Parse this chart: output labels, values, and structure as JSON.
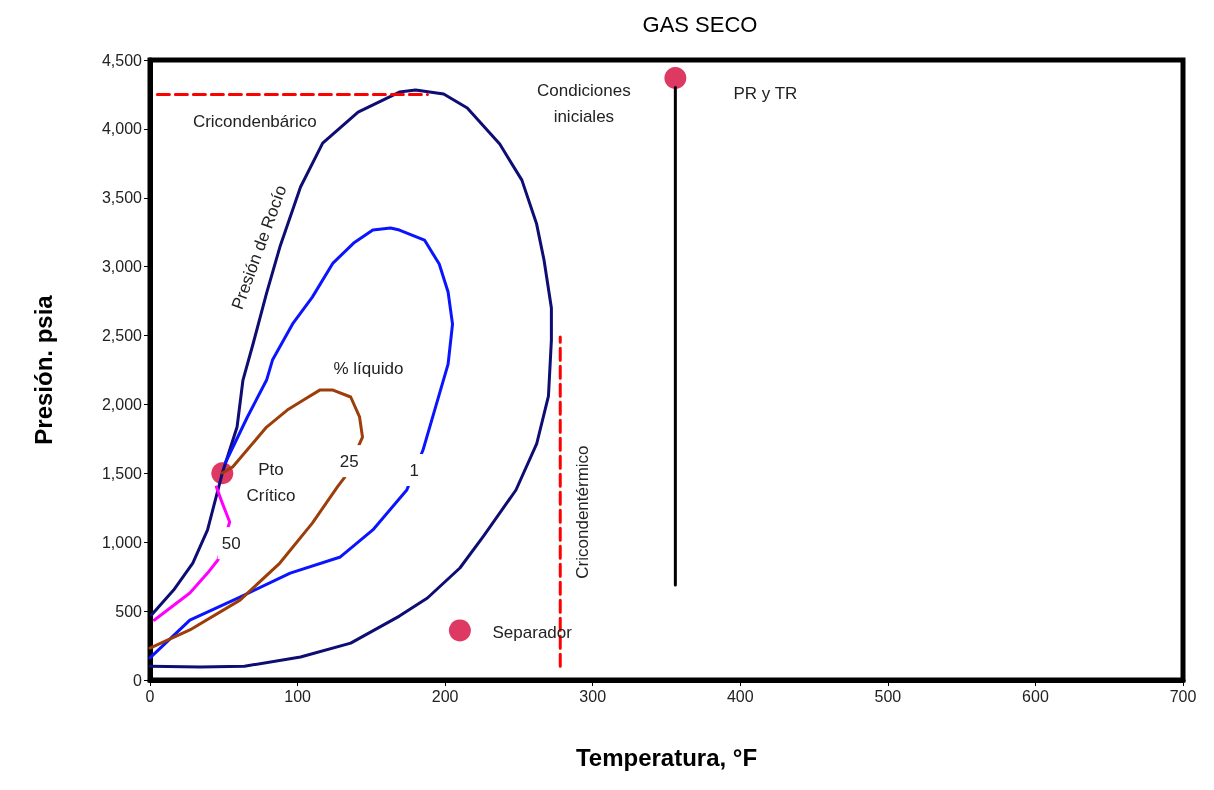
{
  "chart_data": {
    "type": "line",
    "title": "GAS SECO",
    "xlabel": "Temperatura, °F",
    "ylabel": "Presión. psia",
    "xlim": [
      0,
      700
    ],
    "xticks": [
      0,
      100,
      200,
      300,
      400,
      500,
      600,
      700
    ],
    "ylim": [
      0,
      4500
    ],
    "yticks": [
      0,
      500,
      {
        "value": 1000,
        "label": "1,000"
      },
      {
        "value": 1500,
        "label": "1,500"
      },
      {
        "value": 2000,
        "label": "2,000"
      },
      {
        "value": 2500,
        "label": "2,500"
      },
      {
        "value": 3000,
        "label": "3,000"
      },
      {
        "value": 3500,
        "label": "3,500"
      },
      {
        "value": 4000,
        "label": "4,000"
      },
      {
        "value": 4500,
        "label": "4,500"
      }
    ],
    "grid": false,
    "series": [
      {
        "color": "#0d0d73",
        "marker": "none",
        "line_style": "solid",
        "x": [
          0,
          34,
          64,
          102,
          136,
          169,
          188,
          210,
          226,
          248,
          262,
          270,
          272,
          272,
          267,
          262,
          252,
          237,
          215,
          199,
          180,
          169,
          141,
          117,
          102,
          88,
          79,
          70,
          63,
          59,
          49,
          39,
          29,
          16,
          1
        ],
        "values": [
          100,
          94,
          100,
          167,
          268,
          464,
          595,
          813,
          1045,
          1379,
          1713,
          2061,
          2467,
          2700,
          3048,
          3309,
          3628,
          3890,
          4151,
          4253,
          4282,
          4267,
          4122,
          3897,
          3578,
          3142,
          2808,
          2446,
          2177,
          1836,
          1502,
          1089,
          849,
          653,
          472
        ]
      },
      {
        "color": "#0a14ff",
        "marker": "none",
        "line_style": "solid",
        "x": [
          0,
          27,
          61,
          95,
          129,
          151,
          174,
          185,
          202,
          205,
          202,
          196,
          186,
          169,
          163,
          151,
          138,
          124,
          110,
          97,
          83,
          79,
          66,
          51
        ],
        "values": [
          160,
          435,
          602,
          776,
          893,
          1089,
          1379,
          1669,
          2293,
          2583,
          2816,
          3019,
          3193,
          3266,
          3280,
          3266,
          3171,
          3026,
          2779,
          2591,
          2322,
          2177,
          1909,
          1575
        ]
      },
      {
        "color": "#9c3d0a",
        "marker": "none",
        "line_style": "solid",
        "x": [
          0,
          27,
          61,
          88,
          110,
          127,
          132,
          144,
          142,
          136,
          124,
          115,
          104,
          93,
          79,
          56,
          49
        ],
        "values": [
          232,
          363,
          580,
          849,
          1139,
          1401,
          1473,
          1763,
          1909,
          2054,
          2104,
          2104,
          2032,
          1959,
          1836,
          1546,
          1502
        ]
      },
      {
        "color": "#ff00ff",
        "marker": "none",
        "line_style": "solid",
        "x": [
          3,
          27,
          39,
          46,
          54,
          49,
          45
        ],
        "values": [
          435,
          631,
          776,
          871,
          1147,
          1284,
          1401
        ]
      },
      {
        "color": "#000000",
        "marker": "none",
        "line_style": "solid",
        "x": [
          356,
          356
        ],
        "values": [
          690,
          4300
        ]
      },
      {
        "color": "#ff0000",
        "marker": "none",
        "line_style": "dashed",
        "x": [
          5,
          188
        ],
        "values": [
          4250,
          4250
        ]
      },
      {
        "color": "#ff0000",
        "marker": "none",
        "line_style": "dashed",
        "x": [
          278,
          278
        ],
        "values": [
          100,
          2490
        ]
      },
      {
        "type": "scatter",
        "color": "#d6083b",
        "marker": "circle",
        "x": [
          49,
          210,
          356
        ],
        "values": [
          1500,
          360,
          4370
        ]
      }
    ],
    "annotations": [
      "Cricondenbárico",
      "Presión de Rocío",
      "Condiciones\niniciales",
      "PR y TR",
      "% líquido",
      {
        "text": "25",
        "x": 135,
        "y": 1589
      },
      {
        "text": "1",
        "x": 179,
        "y": 1524
      },
      {
        "text": "50",
        "x": 55,
        "y": 994
      },
      "Pto\nCrítico",
      "Cricondentérmico",
      "Separador"
    ]
  }
}
